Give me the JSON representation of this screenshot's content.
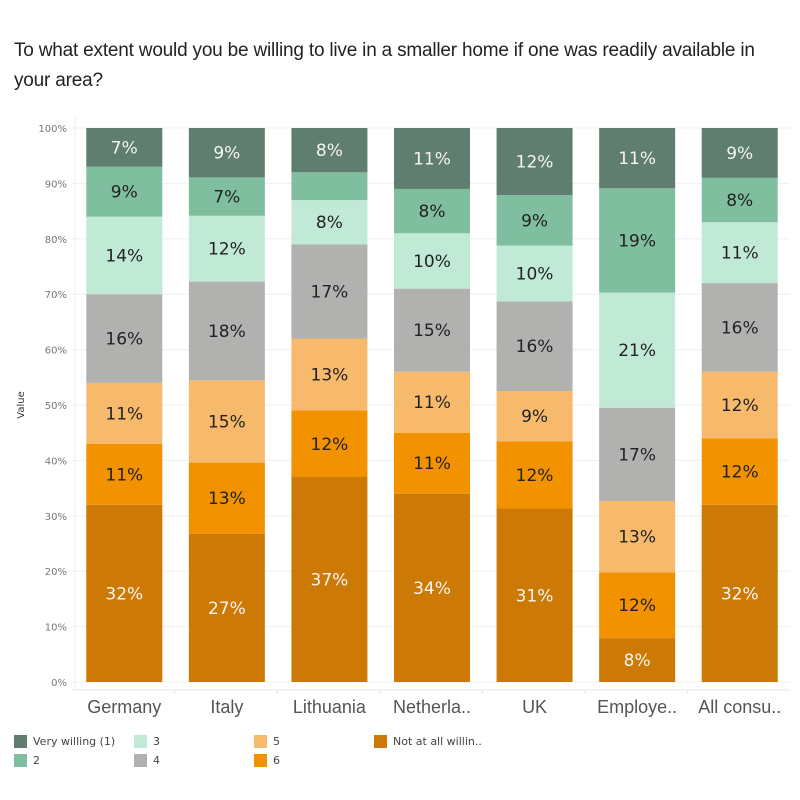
{
  "title": "To what extent would you be willing to live in a smaller home if one was readily available in your area?",
  "chart_data": {
    "type": "bar",
    "stacked": true,
    "orientation": "vertical",
    "title": "To what extent would you be willing to live in a smaller home if one was readily available in your area?",
    "xlabel": "",
    "ylabel": "Value",
    "ylim": [
      0,
      100
    ],
    "yticks": [
      "0%",
      "10%",
      "20%",
      "30%",
      "40%",
      "50%",
      "60%",
      "70%",
      "80%",
      "90%",
      "100%"
    ],
    "grid": true,
    "legend_position": "bottom",
    "categories": [
      "Germany",
      "Italy",
      "Lithuania",
      "Netherla..",
      "UK",
      "Employe..",
      "All consu.."
    ],
    "series": [
      {
        "name": "Not at all willin..",
        "color": "#cc7a05",
        "label_color": "#f5f5f5",
        "values": [
          32,
          27,
          37,
          34,
          31,
          8,
          32
        ]
      },
      {
        "name": "6",
        "color": "#f29200",
        "label_color": "#222222",
        "values": [
          11,
          13,
          12,
          11,
          12,
          12,
          12
        ]
      },
      {
        "name": "5",
        "color": "#f7b96b",
        "label_color": "#222222",
        "values": [
          11,
          15,
          13,
          11,
          9,
          13,
          12
        ]
      },
      {
        "name": "4",
        "color": "#b1b1b0",
        "label_color": "#222222",
        "values": [
          16,
          18,
          17,
          15,
          16,
          17,
          16
        ]
      },
      {
        "name": "3",
        "color": "#c0ead5",
        "label_color": "#222222",
        "values": [
          14,
          12,
          8,
          10,
          10,
          21,
          11
        ]
      },
      {
        "name": "2",
        "color": "#7fbe9f",
        "label_color": "#222222",
        "values": [
          9,
          7,
          5,
          8,
          9,
          19,
          8
        ],
        "hidden_labels": [
          false,
          false,
          true,
          false,
          false,
          false,
          false
        ]
      },
      {
        "name": "Very willing (1)",
        "color": "#607e6f",
        "label_color": "#f5f5f5",
        "values": [
          7,
          9,
          8,
          11,
          12,
          11,
          9
        ]
      }
    ]
  },
  "legend": {
    "items": [
      {
        "name": "Very willing (1)",
        "color": "#607e6f"
      },
      {
        "name": "2",
        "color": "#7fbe9f"
      },
      {
        "name": "3",
        "color": "#c0ead5"
      },
      {
        "name": "4",
        "color": "#b1b1b0"
      },
      {
        "name": "5",
        "color": "#f7b96b"
      },
      {
        "name": "6",
        "color": "#f29200"
      },
      {
        "name": "Not at all willin..",
        "color": "#cc7a05"
      }
    ]
  }
}
